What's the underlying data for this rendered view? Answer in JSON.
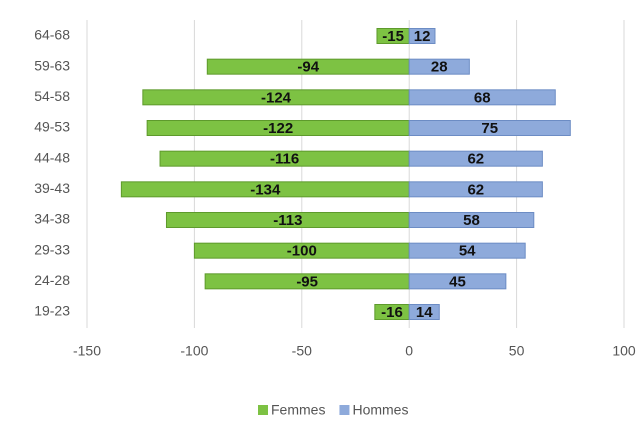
{
  "chart_data": {
    "type": "bar",
    "orientation": "horizontal",
    "categories": [
      "64-68",
      "59-63",
      "54-58",
      "49-53",
      "44-48",
      "39-43",
      "34-38",
      "29-33",
      "24-28",
      "19-23"
    ],
    "series": [
      {
        "name": "Femmes",
        "color": "#7dc243",
        "values": [
          -15,
          -94,
          -124,
          -122,
          -116,
          -134,
          -113,
          -100,
          -95,
          -16
        ]
      },
      {
        "name": "Hommes",
        "color": "#8eaadb",
        "values": [
          12,
          28,
          68,
          75,
          62,
          62,
          58,
          54,
          45,
          14
        ]
      }
    ],
    "xlim": [
      -150,
      100
    ],
    "xticks": [
      -150,
      -100,
      -50,
      0,
      50,
      100
    ],
    "grid": true,
    "legend": "bottom"
  }
}
